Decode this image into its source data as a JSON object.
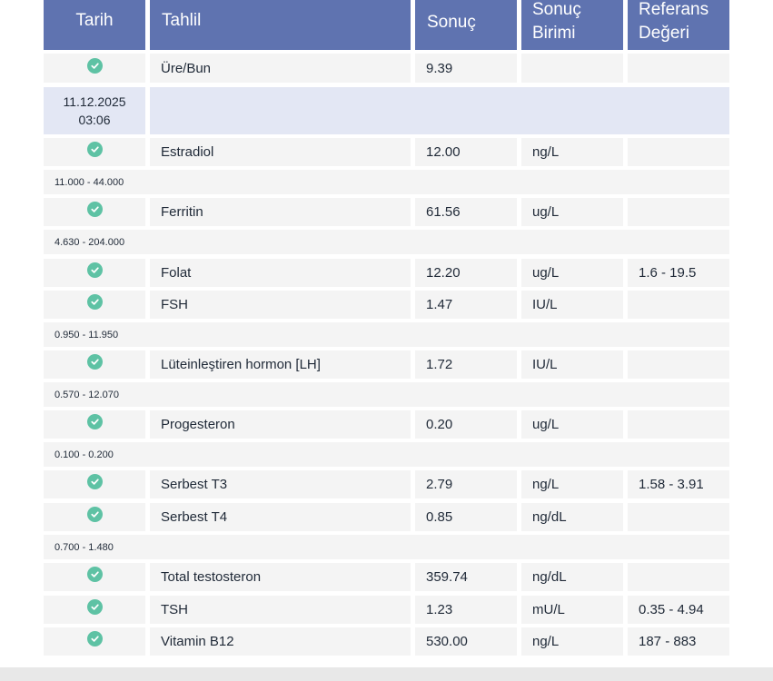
{
  "header": {
    "date": "Tarih",
    "test": "Tahlil",
    "result": "Sonuç",
    "unit_line1": "Sonuç",
    "unit_line2": "Birimi",
    "ref_line1": "Referans",
    "ref_line2": "Değeri"
  },
  "colors": {
    "header_bg": "#5f73b0",
    "check": "#5ec2a4",
    "row_bg": "#f4f4f4",
    "date_row_bg": "#e3e7f4"
  },
  "first_row": {
    "status_icon": "check-circle-icon",
    "test": "Üre/Bun",
    "result": "9.39",
    "unit": "",
    "ref": ""
  },
  "date_group": {
    "date": "11.12.2025",
    "time": "03:06"
  },
  "rows": [
    {
      "status_icon": "check-circle-icon",
      "test": "Estradiol",
      "result": "12.00",
      "unit": "ng/L",
      "ref": "",
      "range_below": "11.000 - 44.000"
    },
    {
      "status_icon": "check-circle-icon",
      "test": "Ferritin",
      "result": "61.56",
      "unit": "ug/L",
      "ref": "",
      "range_below": "4.630 - 204.000"
    },
    {
      "status_icon": "check-circle-icon",
      "test": "Folat",
      "result": "12.20",
      "unit": "ug/L",
      "ref": "1.6 - 19.5"
    },
    {
      "status_icon": "check-circle-icon",
      "test": "FSH",
      "result": "1.47",
      "unit": "IU/L",
      "ref": "",
      "range_below": "0.950 - 11.950"
    },
    {
      "status_icon": "check-circle-icon",
      "test": "Lüteinleştiren hormon [LH]",
      "result": "1.72",
      "unit": "IU/L",
      "ref": "",
      "range_below": "0.570 - 12.070"
    },
    {
      "status_icon": "check-circle-icon",
      "test": "Progesteron",
      "result": "0.20",
      "unit": "ug/L",
      "ref": "",
      "range_below": "0.100 - 0.200"
    },
    {
      "status_icon": "check-circle-icon",
      "test": "Serbest T3",
      "result": "2.79",
      "unit": "ng/L",
      "ref": "1.58 - 3.91"
    },
    {
      "status_icon": "check-circle-icon",
      "test": "Serbest T4",
      "result": "0.85",
      "unit": "ng/dL",
      "ref": "",
      "range_below": "0.700 - 1.480"
    },
    {
      "status_icon": "check-circle-icon",
      "test": "Total testosteron",
      "result": "359.74",
      "unit": "ng/dL",
      "ref": ""
    },
    {
      "status_icon": "check-circle-icon",
      "test": "TSH",
      "result": "1.23",
      "unit": "mU/L",
      "ref": "0.35 - 4.94"
    },
    {
      "status_icon": "check-circle-icon",
      "test": "Vitamin B12",
      "result": "530.00",
      "unit": "ng/L",
      "ref": "187 - 883"
    }
  ]
}
